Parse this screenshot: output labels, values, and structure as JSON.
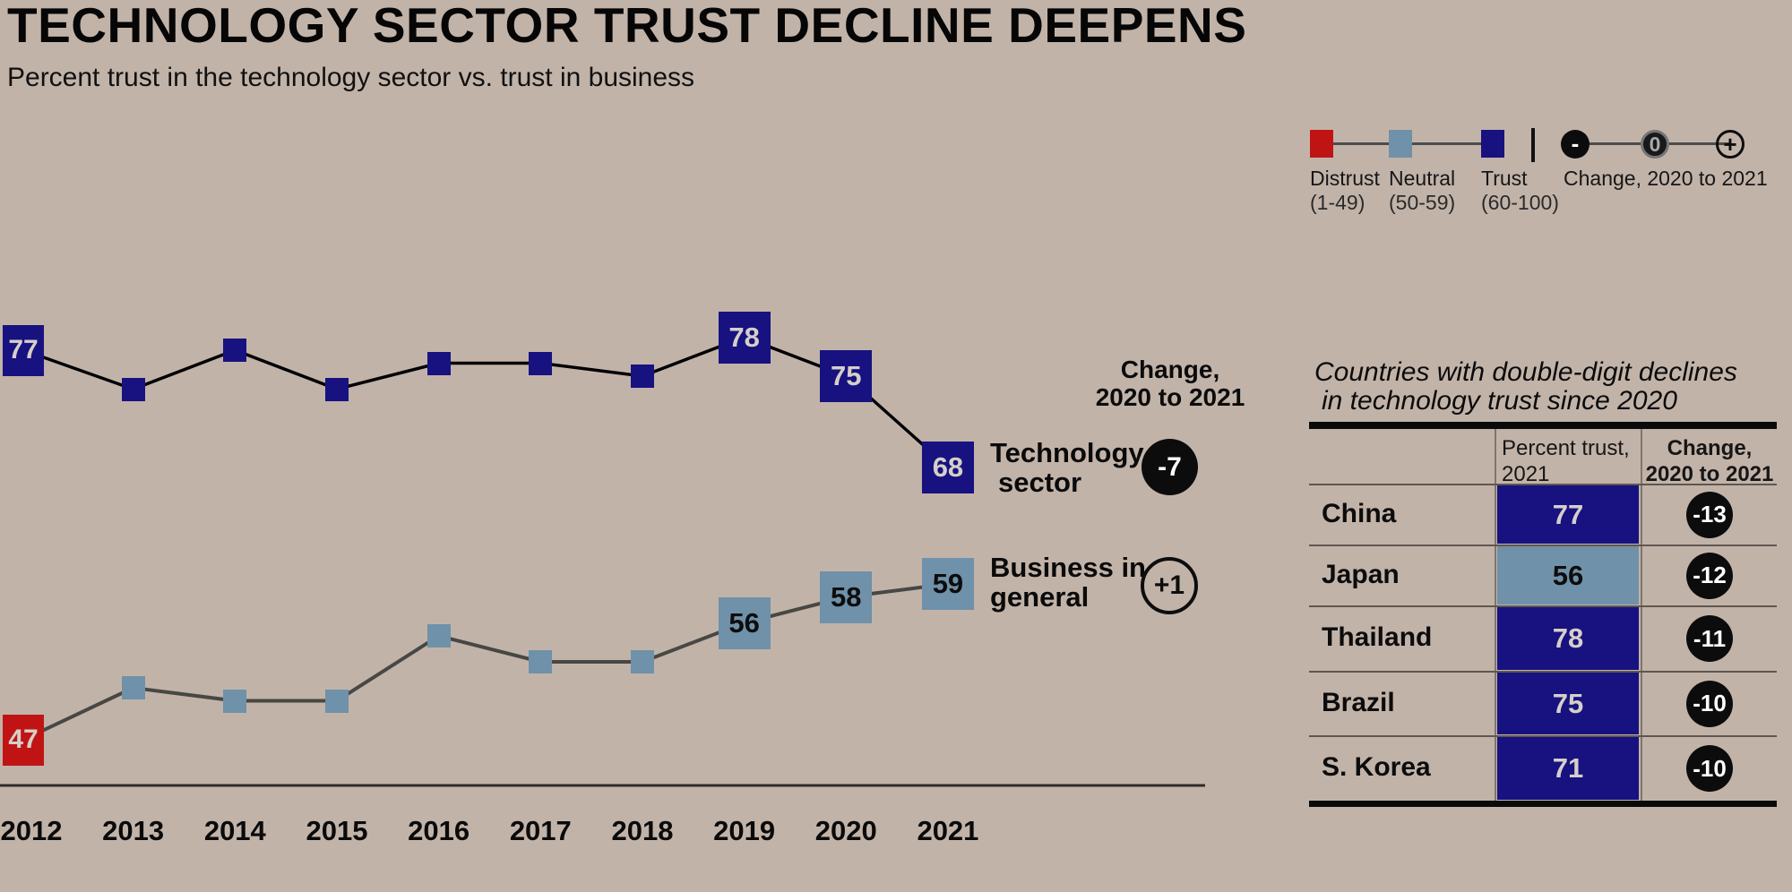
{
  "title": "TECHNOLOGY SECTOR TRUST DECLINE DEEPENS",
  "subtitle": "Percent trust in the technology sector vs. trust in business",
  "colors": {
    "background": "#c2b3a9",
    "distrust": "#c01414",
    "neutral": "#6f91a9",
    "trust": "#171280",
    "badge_black": "#0c0c0c",
    "light_text": "#d6cfc9",
    "dark_text": "#0d0d0d"
  },
  "legend": {
    "scale_items": [
      {
        "label": "Distrust",
        "range": "(1-49)",
        "color_key": "distrust"
      },
      {
        "label": "Neutral",
        "range": "(50-59)",
        "color_key": "neutral"
      },
      {
        "label": "Trust",
        "range": "(60-100)",
        "color_key": "trust"
      }
    ],
    "change_label": "Change, 2020 to 2021",
    "change_markers": [
      "-",
      "0",
      "+"
    ]
  },
  "chart_data": {
    "type": "line",
    "x": [
      2012,
      2013,
      2014,
      2015,
      2016,
      2017,
      2018,
      2019,
      2020,
      2021
    ],
    "series": [
      {
        "name": "Technology sector",
        "label_lines": [
          "Technology",
          "sector"
        ],
        "values": [
          77,
          74,
          77,
          74,
          76,
          76,
          75,
          78,
          75,
          68
        ],
        "labeled_x": [
          2012,
          2019,
          2020,
          2021
        ],
        "change": "-7",
        "change_style": "filled"
      },
      {
        "name": "Business in general",
        "label_lines": [
          "Business in",
          "general"
        ],
        "values": [
          47,
          51,
          50,
          50,
          55,
          53,
          53,
          56,
          58,
          59
        ],
        "labeled_x": [
          2012,
          2019,
          2020,
          2021
        ],
        "change": "+1",
        "change_style": "outline"
      }
    ],
    "value_color_rule": {
      "distrust_max": 49,
      "neutral_max": 59
    },
    "change_header": [
      "Change,",
      "2020 to 2021"
    ],
    "ylim": [
      40,
      85
    ],
    "grid": false,
    "legend_position": "top-right"
  },
  "table": {
    "title_lines": [
      "Countries with double-digit declines",
      "in technology trust since 2020"
    ],
    "col_headers": [
      {
        "lines": [
          "Percent trust,",
          "2021"
        ],
        "bold": false
      },
      {
        "lines": [
          "Change,",
          "2020 to 2021"
        ],
        "bold": true
      }
    ],
    "rows": [
      {
        "country": "China",
        "value": 77,
        "change": "-13"
      },
      {
        "country": "Japan",
        "value": 56,
        "change": "-12"
      },
      {
        "country": "Thailand",
        "value": 78,
        "change": "-11"
      },
      {
        "country": "Brazil",
        "value": 75,
        "change": "-10"
      },
      {
        "country": "S. Korea",
        "value": 71,
        "change": "-10"
      }
    ]
  }
}
